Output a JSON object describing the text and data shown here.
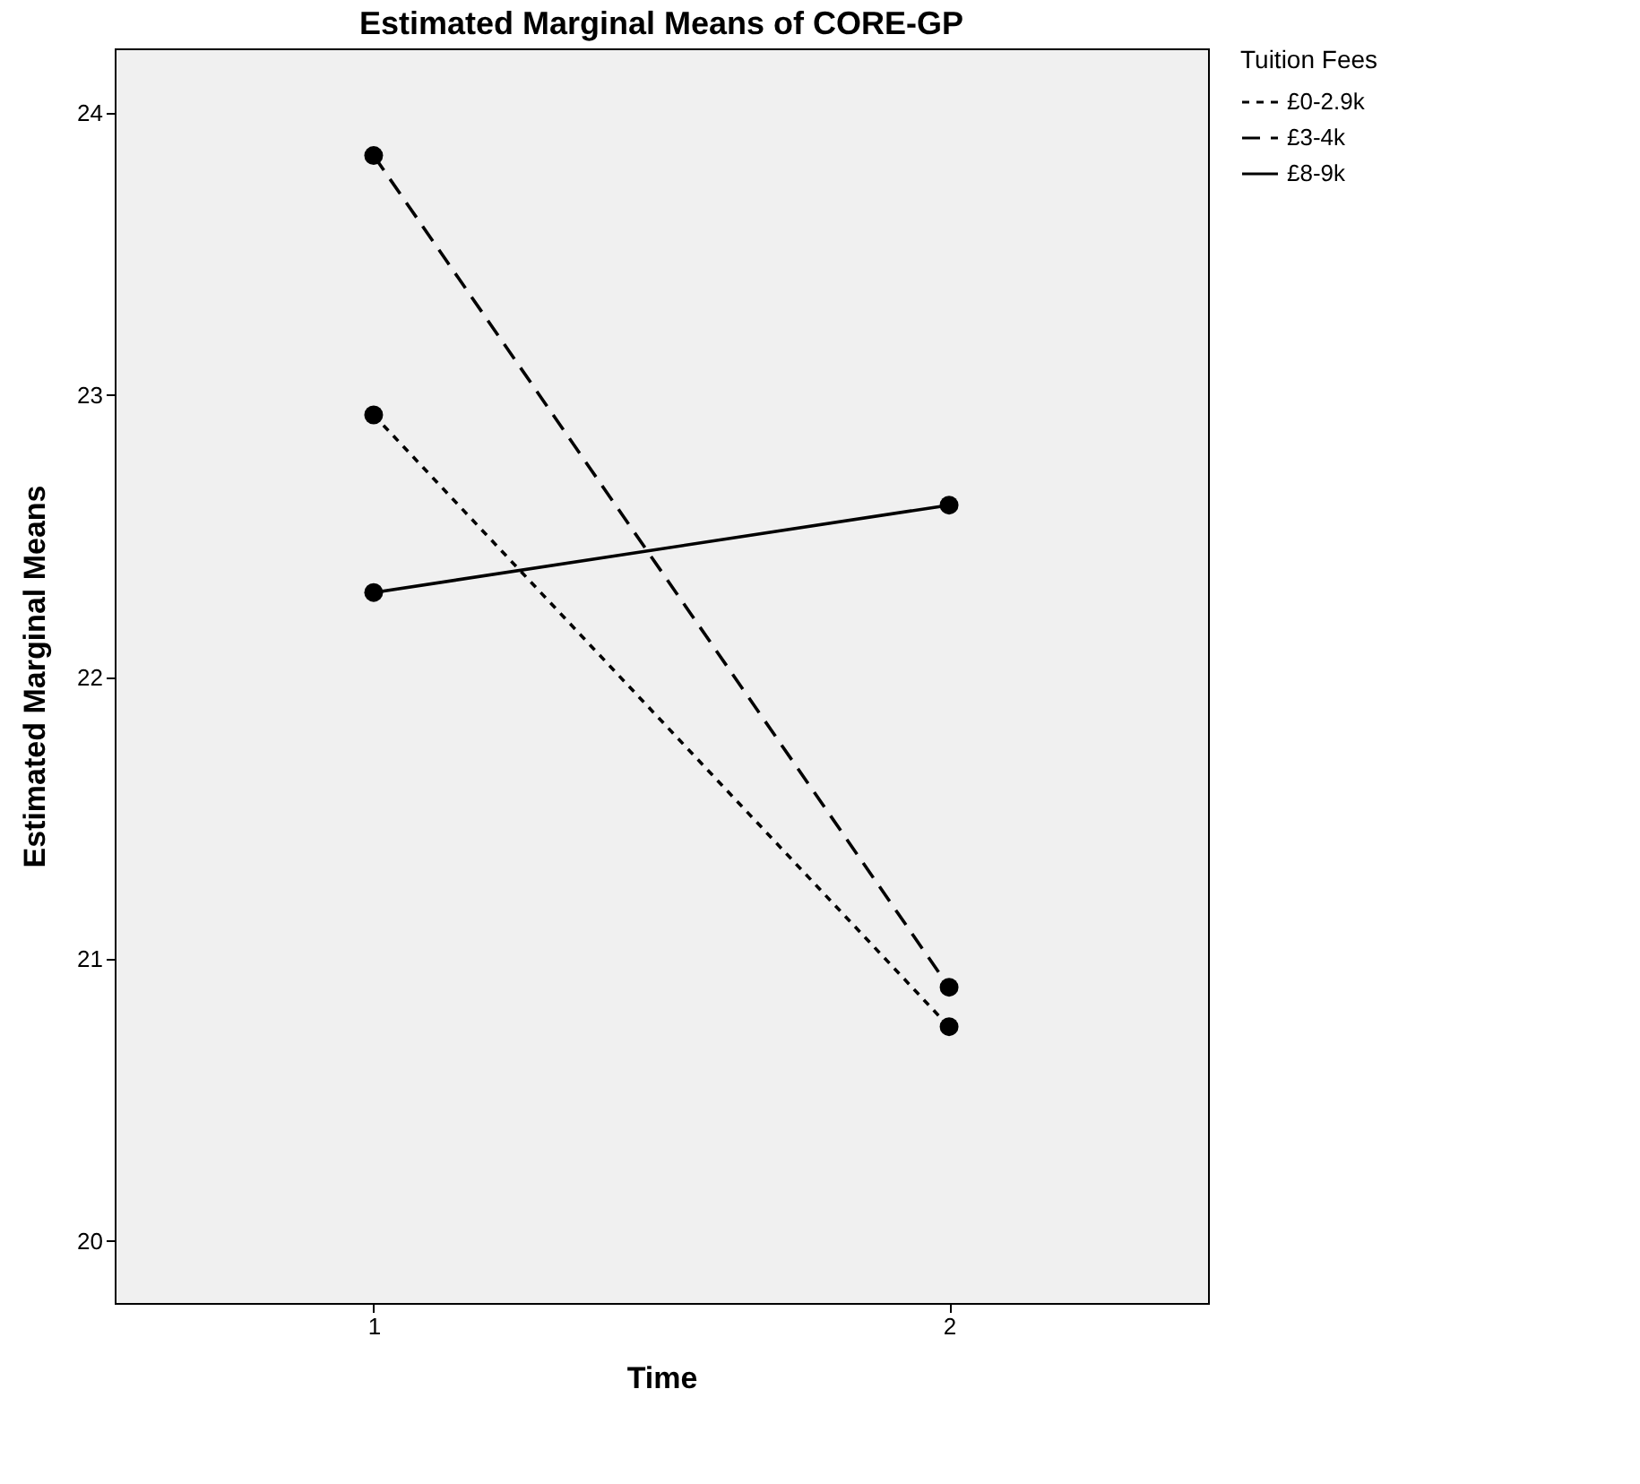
{
  "chart_data": {
    "type": "line",
    "title": "Estimated Marginal Means of CORE-GP",
    "xlabel": "Time",
    "ylabel": "Estimated Marginal Means",
    "legend_title": "Tuition Fees",
    "categories": [
      "1",
      "2"
    ],
    "series": [
      {
        "name": "£0-2.9k",
        "color": "#000000",
        "line_style": "dotted",
        "values": [
          22.93,
          20.76
        ]
      },
      {
        "name": "£3-4k",
        "color": "#000000",
        "line_style": "dashed",
        "values": [
          23.85,
          20.9
        ]
      },
      {
        "name": "£8-9k",
        "color": "#000000",
        "line_style": "solid",
        "values": [
          22.3,
          22.61
        ]
      }
    ],
    "ylim": [
      19.78,
      24.23
    ],
    "yticks": [
      20,
      21,
      22,
      23,
      24
    ],
    "grid": false,
    "legend": "top right",
    "marker": "circle"
  }
}
